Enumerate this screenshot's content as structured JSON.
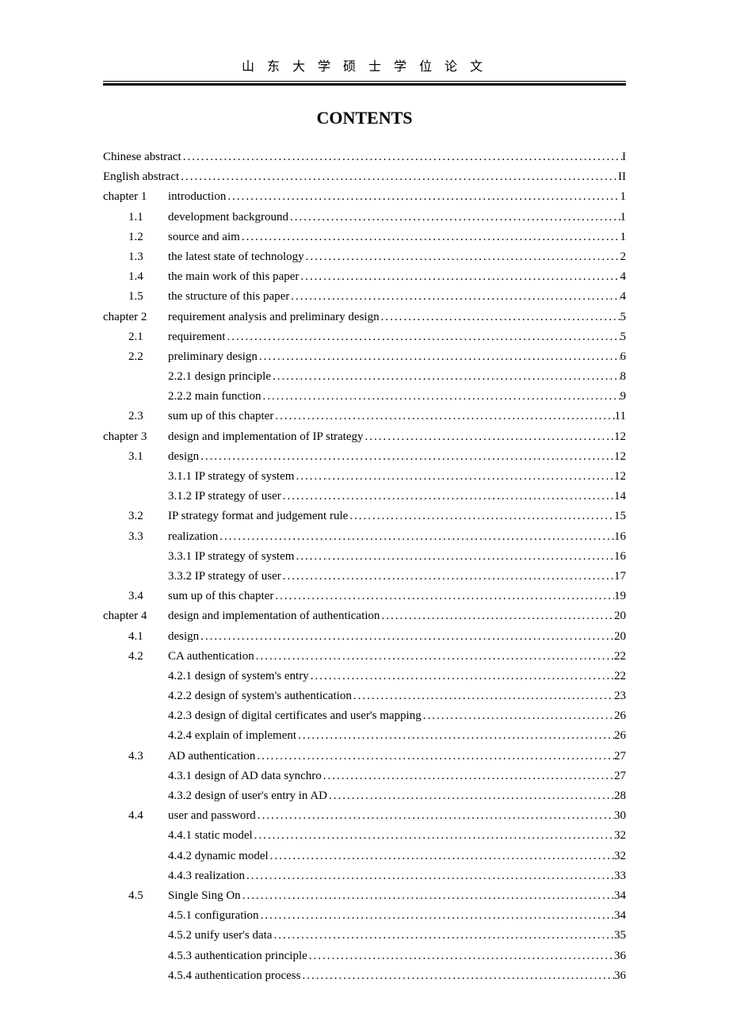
{
  "header_text": "山 东 大 学 硕 士 学 位 论 文",
  "contents_title": "CONTENTS",
  "dots_fill": "........................................................................................................................................................................",
  "toc": [
    {
      "level": "level-0",
      "label": "",
      "title": "Chinese abstract",
      "page": "I"
    },
    {
      "level": "level-0",
      "label": "",
      "title": "English abstract",
      "page": "II"
    },
    {
      "level": "level-chapter",
      "label": "chapter 1",
      "title": "introduction",
      "page": "1"
    },
    {
      "level": "level-1",
      "label": "1.1",
      "title": "development background",
      "page": "1"
    },
    {
      "level": "level-1",
      "label": "1.2",
      "title": "source and aim",
      "page": "1"
    },
    {
      "level": "level-1",
      "label": "1.3",
      "title": "the latest state of technology",
      "page": "2"
    },
    {
      "level": "level-1",
      "label": "1.4",
      "title": "the main work of this paper",
      "page": "4"
    },
    {
      "level": "level-1",
      "label": "1.5",
      "title": "the structure of this paper",
      "page": "4"
    },
    {
      "level": "level-chapter",
      "label": "chapter 2",
      "title": "requirement analysis and preliminary design",
      "page": "5"
    },
    {
      "level": "level-1",
      "label": "2.1",
      "title": "requirement",
      "page": "5"
    },
    {
      "level": "level-1",
      "label": "2.2",
      "title": "preliminary design",
      "page": "6"
    },
    {
      "level": "level-2",
      "label": "",
      "title": "2.2.1 design principle",
      "page": "8"
    },
    {
      "level": "level-2",
      "label": "",
      "title": "2.2.2 main function",
      "page": "9"
    },
    {
      "level": "level-1",
      "label": "2.3",
      "title": "sum up of this chapter",
      "page": "11"
    },
    {
      "level": "level-chapter",
      "label": "chapter 3",
      "title": "design and implementation of IP strategy",
      "page": "12"
    },
    {
      "level": "level-1",
      "label": "3.1",
      "title": "design",
      "page": "12"
    },
    {
      "level": "level-2",
      "label": "",
      "title": "3.1.1 IP strategy of system",
      "page": "12"
    },
    {
      "level": "level-2",
      "label": "",
      "title": "3.1.2 IP strategy of user",
      "page": "14"
    },
    {
      "level": "level-1",
      "label": "3.2",
      "title": "IP strategy format and judgement rule",
      "page": "15"
    },
    {
      "level": "level-1",
      "label": "3.3",
      "title": "realization",
      "page": "16"
    },
    {
      "level": "level-2",
      "label": "",
      "title": "3.3.1 IP strategy of system",
      "page": "16"
    },
    {
      "level": "level-2",
      "label": "",
      "title": "3.3.2 IP strategy of user",
      "page": "17"
    },
    {
      "level": "level-1",
      "label": "3.4",
      "title": "sum up of this chapter",
      "page": "19"
    },
    {
      "level": "level-chapter",
      "label": "chapter 4",
      "title": "design and implementation of authentication",
      "page": "20"
    },
    {
      "level": "level-1",
      "label": "4.1",
      "title": "design",
      "page": "20"
    },
    {
      "level": "level-1",
      "label": "4.2",
      "title": "CA authentication",
      "page": "22"
    },
    {
      "level": "level-2",
      "label": "",
      "title": "4.2.1 design of system's entry",
      "page": "22"
    },
    {
      "level": "level-2",
      "label": "",
      "title": "4.2.2 design of system's authentication",
      "page": "23"
    },
    {
      "level": "level-2",
      "label": "",
      "title": "4.2.3 design of digital certificates and user's mapping",
      "page": "26"
    },
    {
      "level": "level-2",
      "label": "",
      "title": "4.2.4 explain of implement",
      "page": "26"
    },
    {
      "level": "level-1",
      "label": "4.3",
      "title": "AD authentication",
      "page": "27"
    },
    {
      "level": "level-2",
      "label": "",
      "title": "4.3.1 design of AD data synchro",
      "page": "27"
    },
    {
      "level": "level-2",
      "label": "",
      "title": "4.3.2 design of user's entry in AD",
      "page": "28"
    },
    {
      "level": "level-1",
      "label": "4.4",
      "title": "user and password",
      "page": "30"
    },
    {
      "level": "level-2",
      "label": "",
      "title": "4.4.1 static model",
      "page": "32"
    },
    {
      "level": "level-2",
      "label": "",
      "title": "4.4.2 dynamic model",
      "page": "32"
    },
    {
      "level": "level-2",
      "label": "",
      "title": "4.4.3 realization",
      "page": "33"
    },
    {
      "level": "level-1",
      "label": "4.5",
      "title": "Single Sing On",
      "page": "34"
    },
    {
      "level": "level-2",
      "label": "",
      "title": "4.5.1 configuration",
      "page": "34"
    },
    {
      "level": "level-2",
      "label": "",
      "title": "4.5.2 unify user's data",
      "page": "35"
    },
    {
      "level": "level-2",
      "label": "",
      "title": "4.5.3 authentication principle",
      "page": "36"
    },
    {
      "level": "level-2",
      "label": "",
      "title": "4.5.4 authentication process",
      "page": "36"
    }
  ]
}
